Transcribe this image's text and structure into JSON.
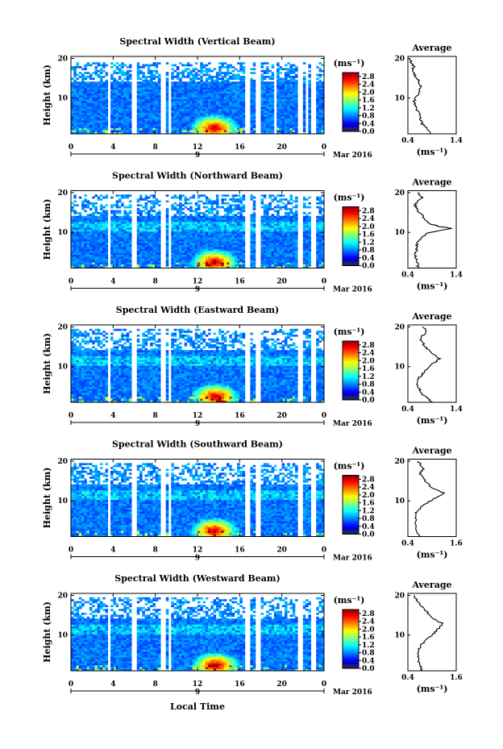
{
  "chart_data": [
    {
      "type": "heatmap",
      "title": "Spectral Width (Vertical Beam)",
      "ylabel": "Height (km)",
      "xticks": [
        "0",
        "4",
        "8",
        "12",
        "16",
        "20",
        "0"
      ],
      "yticks": [
        "10",
        "20"
      ],
      "date_label": "Mar 2016",
      "day_label": "9",
      "colorbar": {
        "unit": "(ms⁻¹)",
        "ticks": [
          "0.0",
          "0.4",
          "0.8",
          "1.2",
          "1.6",
          "2.0",
          "2.4",
          "2.8"
        ],
        "range": [
          0,
          3.0
        ]
      },
      "gaps_hours": [
        [
          3.4,
          3.8
        ],
        [
          5.8,
          6.2
        ],
        [
          8.4,
          8.9
        ],
        [
          9.2,
          9.6
        ],
        [
          16.6,
          17.0
        ],
        [
          17.6,
          18.0
        ],
        [
          19.2,
          19.5
        ],
        [
          21.6,
          22.0
        ],
        [
          22.3,
          22.6
        ],
        [
          22.8,
          23.2
        ]
      ],
      "top_km": 18.8,
      "hotspot": {
        "hour": 13.6,
        "km": 2.5
      },
      "average": {
        "title": "Average",
        "xlabel": "(ms⁻¹)",
        "xticks": [
          "0.4",
          "1.4"
        ],
        "xlim": [
          0.4,
          1.4
        ],
        "yticks": [
          "10",
          "20"
        ],
        "profile": [
          [
            1.0,
            0.85
          ],
          [
            2.0,
            0.82
          ],
          [
            3.0,
            0.72
          ],
          [
            4.0,
            0.68
          ],
          [
            5.0,
            0.66
          ],
          [
            6.0,
            0.63
          ],
          [
            7.0,
            0.58
          ],
          [
            8.0,
            0.55
          ],
          [
            9.0,
            0.52
          ],
          [
            10.0,
            0.55
          ],
          [
            11.0,
            0.6
          ],
          [
            12.0,
            0.64
          ],
          [
            13.0,
            0.66
          ],
          [
            14.0,
            0.64
          ],
          [
            15.0,
            0.58
          ],
          [
            16.0,
            0.52
          ],
          [
            17.0,
            0.48
          ],
          [
            18.0,
            0.52
          ],
          [
            19.0,
            0.46
          ],
          [
            20.0,
            0.44
          ]
        ]
      }
    },
    {
      "type": "heatmap",
      "title": "Spectral Width (Northward Beam)",
      "ylabel": "Height (km)",
      "xticks": [
        "0",
        "4",
        "8",
        "12",
        "16",
        "20",
        "0"
      ],
      "yticks": [
        "10",
        "20"
      ],
      "date_label": "Mar 2016",
      "day_label": "9",
      "colorbar": {
        "unit": "(ms⁻¹)",
        "ticks": [
          "0.0",
          "0.4",
          "0.8",
          "1.2",
          "1.6",
          "2.0",
          "2.4",
          "2.8"
        ],
        "range": [
          0,
          3.0
        ]
      },
      "gaps_hours": [
        [
          3.4,
          3.8
        ],
        [
          5.8,
          6.2
        ],
        [
          8.4,
          8.9
        ],
        [
          9.2,
          9.6
        ],
        [
          16.6,
          17.0
        ],
        [
          17.6,
          18.0
        ],
        [
          21.6,
          22.0
        ],
        [
          22.8,
          23.2
        ]
      ],
      "top_km": 19.6,
      "hotspot": {
        "hour": 13.6,
        "km": 2.5
      },
      "average": {
        "title": "Average",
        "xlabel": "(ms⁻¹)",
        "xticks": [
          "0.4",
          "1.4"
        ],
        "xlim": [
          0.4,
          1.4
        ],
        "yticks": [
          "10",
          "20"
        ],
        "profile": [
          [
            1.0,
            0.62
          ],
          [
            2.0,
            0.6
          ],
          [
            3.0,
            0.58
          ],
          [
            4.0,
            0.56
          ],
          [
            5.0,
            0.55
          ],
          [
            6.0,
            0.6
          ],
          [
            7.0,
            0.58
          ],
          [
            8.0,
            0.62
          ],
          [
            9.0,
            0.7
          ],
          [
            10.0,
            0.85
          ],
          [
            11.0,
            1.3
          ],
          [
            11.5,
            1.05
          ],
          [
            12.0,
            0.9
          ],
          [
            13.0,
            0.75
          ],
          [
            14.0,
            0.72
          ],
          [
            15.0,
            0.62
          ],
          [
            16.0,
            0.58
          ],
          [
            17.0,
            0.55
          ],
          [
            18.0,
            0.62
          ],
          [
            19.0,
            0.7
          ],
          [
            20.0,
            0.6
          ]
        ]
      }
    },
    {
      "type": "heatmap",
      "title": "Spectral Width (Eastward Beam)",
      "ylabel": "Height (km)",
      "xticks": [
        "0",
        "4",
        "8",
        "12",
        "16",
        "20",
        "0"
      ],
      "yticks": [
        "10",
        "20"
      ],
      "date_label": "Mar 2016",
      "day_label": "9",
      "colorbar": {
        "unit": "(ms⁻¹)",
        "ticks": [
          "0.0",
          "0.4",
          "0.8",
          "1.2",
          "1.6",
          "2.0",
          "2.4",
          "2.8"
        ],
        "range": [
          0,
          3.0
        ]
      },
      "gaps_hours": [
        [
          3.4,
          3.8
        ],
        [
          5.8,
          6.2
        ],
        [
          8.4,
          8.9
        ],
        [
          9.2,
          9.6
        ],
        [
          16.6,
          17.0
        ],
        [
          17.6,
          18.0
        ],
        [
          21.6,
          22.0
        ],
        [
          22.8,
          23.2
        ]
      ],
      "top_km": 19.4,
      "hotspot": {
        "hour": 13.7,
        "km": 2.5
      },
      "average": {
        "title": "Average",
        "xlabel": "(ms⁻¹)",
        "xticks": [
          "0.4",
          "1.4"
        ],
        "xlim": [
          0.4,
          1.4
        ],
        "yticks": [
          "10",
          "20"
        ],
        "profile": [
          [
            1.0,
            0.9
          ],
          [
            2.0,
            0.8
          ],
          [
            3.0,
            0.7
          ],
          [
            4.0,
            0.66
          ],
          [
            5.0,
            0.62
          ],
          [
            6.0,
            0.58
          ],
          [
            7.0,
            0.62
          ],
          [
            8.0,
            0.7
          ],
          [
            9.0,
            0.75
          ],
          [
            10.0,
            0.85
          ],
          [
            11.0,
            0.95
          ],
          [
            12.0,
            1.05
          ],
          [
            13.0,
            0.95
          ],
          [
            14.0,
            0.85
          ],
          [
            15.0,
            0.75
          ],
          [
            16.0,
            0.7
          ],
          [
            17.0,
            0.65
          ],
          [
            18.0,
            0.72
          ],
          [
            19.0,
            0.8
          ],
          [
            20.0,
            0.7
          ]
        ]
      }
    },
    {
      "type": "heatmap",
      "title": "Spectral Width (Southward Beam)",
      "ylabel": "Height (km)",
      "xticks": [
        "0",
        "4",
        "8",
        "12",
        "16",
        "20",
        "0"
      ],
      "yticks": [
        "10",
        "20"
      ],
      "date_label": "Mar 2016",
      "day_label": "9",
      "colorbar": {
        "unit": "(ms⁻¹)",
        "ticks": [
          "0.0",
          "0.4",
          "0.8",
          "1.2",
          "1.6",
          "2.0",
          "2.4",
          "2.8"
        ],
        "range": [
          0,
          3.0
        ]
      },
      "gaps_hours": [
        [
          3.4,
          3.8
        ],
        [
          5.8,
          6.2
        ],
        [
          8.4,
          8.9
        ],
        [
          9.2,
          9.6
        ],
        [
          16.6,
          17.0
        ],
        [
          17.6,
          18.0
        ],
        [
          21.6,
          22.0
        ],
        [
          22.8,
          23.2
        ]
      ],
      "top_km": 19.4,
      "hotspot": {
        "hour": 13.6,
        "km": 2.5
      },
      "average": {
        "title": "Average",
        "xlabel": "(ms⁻¹)",
        "xticks": [
          "0.4",
          "1.6"
        ],
        "xlim": [
          0.4,
          1.6
        ],
        "yticks": [
          "10",
          "20"
        ],
        "profile": [
          [
            1.0,
            0.7
          ],
          [
            2.0,
            0.65
          ],
          [
            3.0,
            0.62
          ],
          [
            4.0,
            0.6
          ],
          [
            5.0,
            0.58
          ],
          [
            6.0,
            0.62
          ],
          [
            7.0,
            0.6
          ],
          [
            8.0,
            0.7
          ],
          [
            9.0,
            0.8
          ],
          [
            10.0,
            0.95
          ],
          [
            11.0,
            1.15
          ],
          [
            12.0,
            1.3
          ],
          [
            13.0,
            1.05
          ],
          [
            14.0,
            0.92
          ],
          [
            15.0,
            0.82
          ],
          [
            16.0,
            0.75
          ],
          [
            17.0,
            0.7
          ],
          [
            18.0,
            0.78
          ],
          [
            19.0,
            0.72
          ],
          [
            20.0,
            0.65
          ]
        ]
      }
    },
    {
      "type": "heatmap",
      "title": "Spectral Width (Westward Beam)",
      "ylabel": "Height (km)",
      "xticks": [
        "0",
        "4",
        "8",
        "12",
        "16",
        "20",
        "0"
      ],
      "yticks": [
        "10",
        "20"
      ],
      "date_label": "Mar 2016",
      "day_label": "9",
      "colorbar": {
        "unit": "(ms⁻¹)",
        "ticks": [
          "0.0",
          "0.4",
          "0.8",
          "1.2",
          "1.6",
          "2.0",
          "2.4",
          "2.8"
        ],
        "range": [
          0,
          3.0
        ]
      },
      "gaps_hours": [
        [
          3.4,
          3.8
        ],
        [
          5.8,
          6.2
        ],
        [
          8.4,
          8.9
        ],
        [
          9.2,
          9.6
        ],
        [
          16.6,
          17.0
        ],
        [
          17.6,
          18.0
        ],
        [
          21.6,
          22.0
        ],
        [
          22.8,
          23.2
        ]
      ],
      "top_km": 19.4,
      "hotspot": {
        "hour": 13.7,
        "km": 2.5
      },
      "average": {
        "title": "Average",
        "xlabel": "(ms⁻¹)",
        "xticks": [
          "0.4",
          "1.6"
        ],
        "xlim": [
          0.4,
          1.6
        ],
        "yticks": [
          "10",
          "20"
        ],
        "profile": [
          [
            1.0,
            0.75
          ],
          [
            2.0,
            0.72
          ],
          [
            3.0,
            0.68
          ],
          [
            4.0,
            0.66
          ],
          [
            5.0,
            0.64
          ],
          [
            6.0,
            0.66
          ],
          [
            7.0,
            0.7
          ],
          [
            8.0,
            0.78
          ],
          [
            9.0,
            0.88
          ],
          [
            10.0,
            1.0
          ],
          [
            11.0,
            1.1
          ],
          [
            12.0,
            1.2
          ],
          [
            13.0,
            1.25
          ],
          [
            14.0,
            1.05
          ],
          [
            15.0,
            0.95
          ],
          [
            16.0,
            0.85
          ],
          [
            17.0,
            0.75
          ],
          [
            18.0,
            0.68
          ],
          [
            19.0,
            0.6
          ],
          [
            20.0,
            0.55
          ]
        ]
      }
    }
  ],
  "xlabel_bottom": "Local Time"
}
